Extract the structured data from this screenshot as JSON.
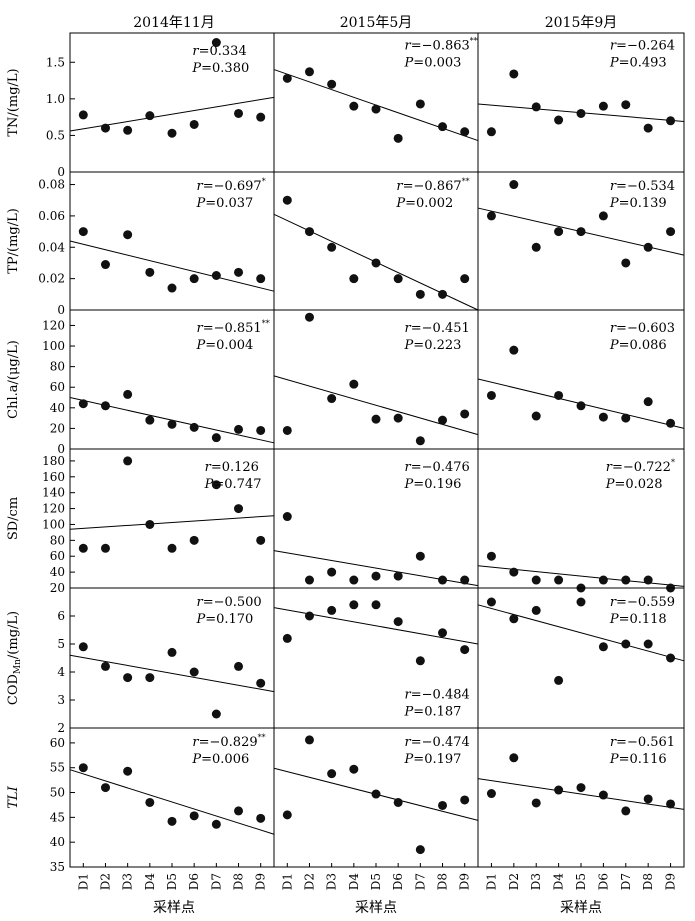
{
  "column_headers": [
    "2014年11月",
    "2015年5月",
    "2015年9月"
  ],
  "row_ylabels": [
    "TN/(mg/L)",
    "TP/(mg/L)",
    "Chl.a/(μg/L)",
    "SD/cm",
    "COD_Mn/(mg/L)",
    "TLI"
  ],
  "x_axis_label": "采样点",
  "chart_data": {
    "type": "scatter",
    "categories": [
      "D1",
      "D2",
      "D3",
      "D4",
      "D5",
      "D6",
      "D7",
      "D8",
      "D9"
    ],
    "rows": [
      {
        "ylabel": "TN/(mg/L)",
        "ylim": [
          0,
          1.9
        ],
        "yticks": [
          "0",
          "0.5",
          "1.0",
          "1.5"
        ],
        "ytick_values": [
          0,
          0.5,
          1.0,
          1.5
        ],
        "panels": [
          {
            "column": "2014年11月",
            "values": [
              0.78,
              0.6,
              0.57,
              0.77,
              0.53,
              0.65,
              1.77,
              0.8,
              0.75
            ],
            "fit": [
              0.56,
              1.02
            ],
            "stats": [
              {
                "r": "0.334",
                "p": "0.380",
                "sig": ""
              }
            ]
          },
          {
            "column": "2015年5月",
            "values": [
              1.28,
              1.37,
              1.2,
              0.9,
              0.86,
              0.46,
              0.93,
              0.62,
              0.55
            ],
            "fit": [
              1.4,
              0.43
            ],
            "stats": [
              {
                "r": "−0.863",
                "p": "0.003",
                "sig": "**"
              }
            ]
          },
          {
            "column": "2015年9月",
            "values": [
              0.55,
              1.34,
              0.89,
              0.71,
              0.8,
              0.9,
              0.92,
              0.6,
              0.7
            ],
            "fit": [
              0.93,
              0.69
            ],
            "stats": [
              {
                "r": "−0.264",
                "p": "0.493",
                "sig": ""
              }
            ]
          }
        ]
      },
      {
        "ylabel": "TP/(mg/L)",
        "ylim": [
          0,
          0.088
        ],
        "yticks": [
          "0",
          "0.02",
          "0.04",
          "0.06",
          "0.08"
        ],
        "ytick_values": [
          0,
          0.02,
          0.04,
          0.06,
          0.08
        ],
        "panels": [
          {
            "column": "2014年11月",
            "values": [
              0.05,
              0.029,
              0.048,
              0.024,
              0.014,
              0.02,
              0.022,
              0.024,
              0.02
            ],
            "fit": [
              0.044,
              0.012
            ],
            "stats": [
              {
                "r": "−0.697",
                "p": "0.037",
                "sig": "*"
              }
            ]
          },
          {
            "column": "2015年5月",
            "values": [
              0.07,
              0.05,
              0.04,
              0.02,
              0.03,
              0.02,
              0.01,
              0.01,
              0.02
            ],
            "fit": [
              0.061,
              0.0
            ],
            "stats": [
              {
                "r": "−0.867",
                "p": "0.002",
                "sig": "**"
              }
            ]
          },
          {
            "column": "2015年9月",
            "values": [
              0.06,
              0.08,
              0.04,
              0.05,
              0.05,
              0.06,
              0.03,
              0.04,
              0.05
            ],
            "fit": [
              0.065,
              0.035
            ],
            "stats": [
              {
                "r": "−0.534",
                "p": "0.139",
                "sig": ""
              }
            ]
          }
        ]
      },
      {
        "ylabel": "Chl.a/(μg/L)",
        "ylim": [
          0,
          135
        ],
        "yticks": [
          "0",
          "20",
          "40",
          "60",
          "80",
          "100",
          "120"
        ],
        "ytick_values": [
          0,
          20,
          40,
          60,
          80,
          100,
          120
        ],
        "panels": [
          {
            "column": "2014年11月",
            "values": [
              44,
              42,
              53,
              28,
              24,
              21,
              11,
              19,
              18
            ],
            "fit": [
              50,
              6
            ],
            "stats": [
              {
                "r": "−0.851",
                "p": "0.004",
                "sig": "**"
              }
            ]
          },
          {
            "column": "2015年5月",
            "values": [
              18,
              128,
              49,
              63,
              29,
              30,
              8,
              28,
              34
            ],
            "fit": [
              71,
              14
            ],
            "stats": [
              {
                "r": "−0.451",
                "p": "0.223",
                "sig": ""
              }
            ]
          },
          {
            "column": "2015年9月",
            "values": [
              52,
              96,
              32,
              52,
              42,
              31,
              30,
              46,
              25
            ],
            "fit": [
              68,
              20
            ],
            "stats": [
              {
                "r": "−0.603",
                "p": "0.086",
                "sig": ""
              }
            ]
          }
        ]
      },
      {
        "ylabel": "SD/cm",
        "ylim": [
          20,
          195
        ],
        "yticks": [
          "20",
          "40",
          "60",
          "80",
          "100",
          "120",
          "140",
          "160",
          "180"
        ],
        "ytick_values": [
          20,
          40,
          60,
          80,
          100,
          120,
          140,
          160,
          180
        ],
        "panels": [
          {
            "column": "2014年11月",
            "values": [
              70,
              70,
              180,
              100,
              70,
              80,
              150,
              120,
              80
            ],
            "fit": [
              94,
              111
            ],
            "stats": [
              {
                "r": "0.126",
                "p": "0.747",
                "sig": ""
              }
            ]
          },
          {
            "column": "2015年5月",
            "values": [
              110,
              30,
              40,
              30,
              35,
              35,
              60,
              30,
              30
            ],
            "fit": [
              67,
              23
            ],
            "stats": [
              {
                "r": "−0.476",
                "p": "0.196",
                "sig": ""
              }
            ]
          },
          {
            "column": "2015年9月",
            "values": [
              60,
              40,
              30,
              30,
              20,
              30,
              30,
              30,
              20
            ],
            "fit": [
              48,
              22
            ],
            "stats": [
              {
                "r": "−0.722",
                "p": "0.028",
                "sig": "*"
              }
            ]
          }
        ]
      },
      {
        "ylabel": "COD_Mn/(mg/L)",
        "ylim": [
          2,
          7
        ],
        "yticks": [
          "2",
          "3",
          "4",
          "5",
          "6"
        ],
        "ytick_values": [
          2,
          3,
          4,
          5,
          6
        ],
        "panels": [
          {
            "column": "2014年11月",
            "values": [
              4.9,
              4.2,
              3.8,
              3.8,
              4.7,
              4.0,
              2.5,
              4.2,
              3.6
            ],
            "fit": [
              4.6,
              3.3
            ],
            "stats": [
              {
                "r": "−0.500",
                "p": "0.170",
                "sig": ""
              }
            ]
          },
          {
            "column": "2015年5月",
            "values": [
              5.2,
              6.0,
              6.2,
              6.4,
              6.4,
              5.8,
              4.4,
              5.4,
              4.8
            ],
            "fit": [
              6.3,
              5.0
            ],
            "stats": [
              {
                "r": "−0.484",
                "p": "0.187",
                "sig": ""
              }
            ]
          },
          {
            "column": "2015年9月",
            "values": [
              6.5,
              5.9,
              6.2,
              3.7,
              6.5,
              4.9,
              5.0,
              5.0,
              4.5
            ],
            "fit": [
              6.4,
              4.4
            ],
            "stats": [
              {
                "r": "−0.559",
                "p": "0.118",
                "sig": ""
              }
            ]
          }
        ]
      },
      {
        "ylabel": "TLI",
        "ylim": [
          35,
          63
        ],
        "yticks": [
          "35",
          "40",
          "45",
          "50",
          "55",
          "60"
        ],
        "ytick_values": [
          35,
          40,
          45,
          50,
          55,
          60
        ],
        "panels": [
          {
            "column": "2014年11月",
            "values": [
              55,
              51,
              54.3,
              48,
              44.2,
              45.3,
              43.6,
              46.3,
              44.8
            ],
            "fit": [
              54.6,
              41.6
            ],
            "stats": [
              {
                "r": "−0.829",
                "p": "0.006",
                "sig": "**"
              }
            ]
          },
          {
            "column": "2015年5月",
            "values": [
              45.5,
              60.6,
              53.8,
              54.7,
              49.7,
              48,
              38.5,
              47.4,
              48.5
            ],
            "fit": [
              54.9,
              44.4
            ],
            "stats": [
              {
                "r": "−0.474",
                "p": "0.197",
                "sig": ""
              }
            ]
          },
          {
            "column": "2015年9月",
            "values": [
              49.8,
              57,
              47.9,
              50.5,
              51,
              49.5,
              46.3,
              48.7,
              47.7
            ],
            "fit": [
              52.8,
              46.6
            ],
            "stats": [
              {
                "r": "−0.561",
                "p": "0.116",
                "sig": ""
              }
            ]
          }
        ]
      }
    ]
  }
}
